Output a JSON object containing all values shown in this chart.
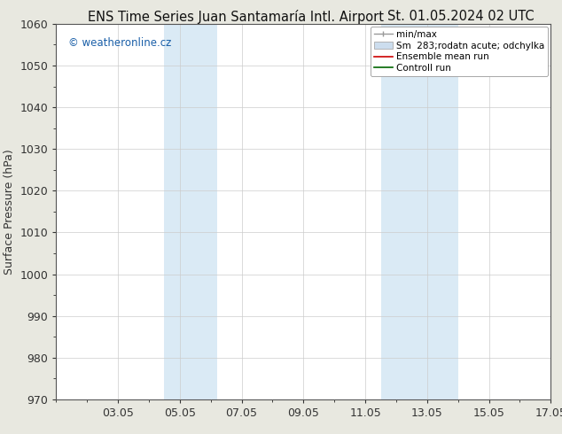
{
  "title_left": "ENS Time Series Juan Santamaría Intl. Airport",
  "title_right": "St. 01.05.2024 02 UTC",
  "ylabel": "Surface Pressure (hPa)",
  "ylim": [
    970,
    1060
  ],
  "yticks": [
    970,
    980,
    990,
    1000,
    1010,
    1020,
    1030,
    1040,
    1050,
    1060
  ],
  "xlim": [
    0,
    16
  ],
  "xtick_labels": [
    "03.05",
    "05.05",
    "07.05",
    "09.05",
    "11.05",
    "13.05",
    "15.05",
    "17.05"
  ],
  "xtick_positions": [
    2,
    4,
    6,
    8,
    10,
    12,
    14,
    16
  ],
  "shade_bands": [
    {
      "start": 3.5,
      "end": 5.2,
      "color": "#daeaf5"
    },
    {
      "start": 10.5,
      "end": 13.0,
      "color": "#daeaf5"
    }
  ],
  "watermark": "© weatheronline.cz",
  "legend_minmax_label": "min/max",
  "legend_odchylka_label": "Sm  283;rodatn acute; odchylka",
  "legend_ensemble_label": "Ensemble mean run",
  "legend_control_label": "Controll run",
  "legend_minmax_color": "#999999",
  "legend_odchylka_color": "#ccddee",
  "legend_ensemble_color": "#cc0000",
  "legend_control_color": "#006600",
  "fig_bg_color": "#e8e8e0",
  "plot_bg_color": "#ffffff",
  "title_fontsize": 10.5,
  "axis_label_fontsize": 9,
  "tick_fontsize": 9,
  "watermark_fontsize": 8.5,
  "legend_fontsize": 7.5,
  "grid_color": "#cccccc",
  "tick_color": "#333333"
}
